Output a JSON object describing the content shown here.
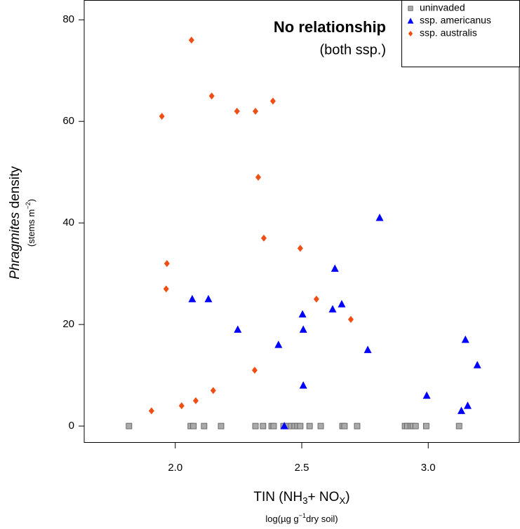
{
  "chart_data": {
    "type": "scatter",
    "annotation": "No relationship",
    "annotation_sub": "(both ssp.)",
    "xlabel": [
      "TIN (NH",
      "3",
      "+ NO",
      "X",
      ")"
    ],
    "xlabel_sub": [
      "log(µg g",
      "−1",
      "dry soil)"
    ],
    "ylabel": [
      "Phragmites",
      " density"
    ],
    "ylabel_sub": [
      "(stems m",
      "−2",
      ")"
    ],
    "xlim": [
      1.64,
      3.36
    ],
    "ylim": [
      -3.3,
      83.9
    ],
    "xticks": [
      {
        "value": 2,
        "label": "2.0"
      },
      2.5,
      {
        "value": 3,
        "label": "3.0"
      }
    ],
    "yticks": [
      0,
      20,
      40,
      60,
      80
    ],
    "legend": "top-right",
    "series": [
      {
        "name": "uninvaded",
        "color": "#aaaaaa",
        "marker": "square",
        "x": [
          1.817,
          2.061,
          2.072,
          2.114,
          2.181,
          2.317,
          2.347,
          2.381,
          2.389,
          2.428,
          2.444,
          2.458,
          2.472,
          2.483,
          2.494,
          2.531,
          2.575,
          2.661,
          2.669,
          2.719,
          2.908,
          2.917,
          2.931,
          2.939,
          2.95,
          2.992,
          3.122
        ],
        "values": [
          0,
          0,
          0,
          0,
          0,
          0,
          0,
          0,
          0,
          0,
          0,
          0,
          0,
          0,
          0,
          0,
          0,
          0,
          0,
          0,
          0,
          0,
          0,
          0,
          0,
          0,
          0
        ]
      },
      {
        "name": "ssp. americanus",
        "color": "#0000ff",
        "marker": "triangle",
        "x": [
          2.067,
          2.131,
          2.247,
          2.408,
          2.431,
          2.503,
          2.506,
          2.506,
          2.622,
          2.631,
          2.658,
          2.761,
          2.808,
          2.994,
          3.131,
          3.156,
          3.147,
          3.194
        ],
        "values": [
          25,
          25,
          19,
          16,
          0,
          22,
          19,
          8,
          23,
          31,
          24,
          15,
          41,
          6,
          3,
          4,
          17,
          12
        ]
      },
      {
        "name": "ssp. australis",
        "color": "#f04e14",
        "marker": "diamond",
        "x": [
          1.906,
          1.947,
          1.967,
          1.964,
          2.025,
          2.064,
          2.081,
          2.144,
          2.15,
          2.244,
          2.317,
          2.314,
          2.328,
          2.35,
          2.386,
          2.494,
          2.558,
          2.694
        ],
        "values": [
          3,
          61,
          32,
          27,
          4,
          76,
          5,
          65,
          7,
          62,
          62,
          11,
          49,
          37,
          64,
          35,
          25,
          21
        ]
      }
    ]
  }
}
